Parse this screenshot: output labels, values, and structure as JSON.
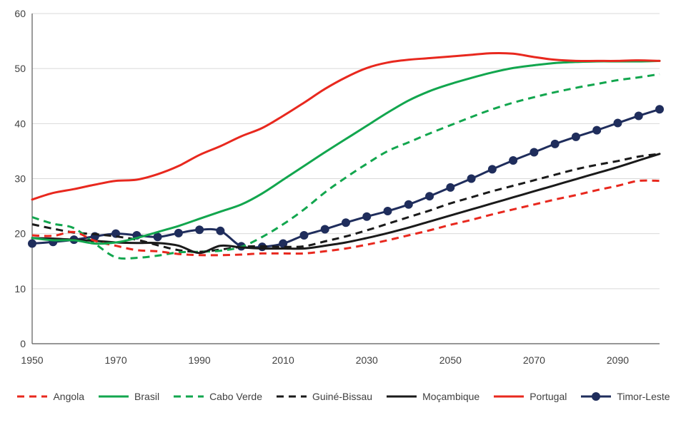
{
  "chart_data": {
    "type": "line",
    "title": "",
    "xlabel": "",
    "ylabel": "",
    "xlim": [
      1950,
      2100
    ],
    "ylim": [
      0,
      60
    ],
    "x_ticks": [
      "1950",
      "1970",
      "1990",
      "2010",
      "2030",
      "2050",
      "2070",
      "2090"
    ],
    "y_ticks": [
      "0",
      "10",
      "20",
      "30",
      "40",
      "50",
      "60"
    ],
    "grid": "horizontal",
    "legend_position": "bottom",
    "x": [
      1950,
      1955,
      1960,
      1965,
      1970,
      1975,
      1980,
      1985,
      1990,
      1995,
      2000,
      2005,
      2010,
      2015,
      2020,
      2025,
      2030,
      2035,
      2040,
      2045,
      2050,
      2055,
      2060,
      2065,
      2070,
      2075,
      2080,
      2085,
      2090,
      2095,
      2100
    ],
    "series": [
      {
        "name": "Angola",
        "color": "#e8281e",
        "style": "dashed",
        "marker": false,
        "values": [
          19.7,
          19.6,
          20.3,
          18.7,
          17.8,
          17.0,
          16.8,
          16.3,
          16.1,
          16.1,
          16.2,
          16.4,
          16.4,
          16.4,
          16.8,
          17.3,
          18.0,
          18.8,
          19.7,
          20.6,
          21.6,
          22.5,
          23.5,
          24.4,
          25.3,
          26.2,
          27.0,
          27.9,
          28.7,
          29.6,
          29.6
        ]
      },
      {
        "name": "Brasil",
        "color": "#12a64e",
        "style": "solid",
        "marker": false,
        "values": [
          19.2,
          18.8,
          18.8,
          18.2,
          18.4,
          19.2,
          20.3,
          21.4,
          22.7,
          24.0,
          25.3,
          27.3,
          29.8,
          32.3,
          34.8,
          37.2,
          39.6,
          42.0,
          44.2,
          45.9,
          47.2,
          48.3,
          49.3,
          50.1,
          50.6,
          51.0,
          51.2,
          51.3,
          51.3,
          51.3,
          51.4
        ]
      },
      {
        "name": "Cabo Verde",
        "color": "#12a64e",
        "style": "dashed",
        "marker": false,
        "values": [
          23.0,
          21.8,
          21.0,
          18.2,
          15.7,
          15.6,
          16.0,
          16.6,
          16.7,
          16.9,
          17.6,
          19.4,
          21.7,
          24.4,
          27.5,
          30.2,
          32.7,
          35.0,
          36.6,
          38.2,
          39.7,
          41.2,
          42.6,
          43.8,
          44.8,
          45.7,
          46.5,
          47.2,
          47.9,
          48.4,
          49.0
        ]
      },
      {
        "name": "Guiné-Bissau",
        "color": "#1a1a1a",
        "style": "dashed",
        "marker": false,
        "values": [
          21.7,
          20.9,
          20.2,
          19.9,
          19.5,
          18.9,
          17.9,
          17.0,
          16.7,
          17.1,
          17.6,
          17.7,
          17.6,
          17.7,
          18.6,
          19.5,
          20.6,
          21.8,
          23.0,
          24.2,
          25.5,
          26.6,
          27.7,
          28.7,
          29.7,
          30.7,
          31.7,
          32.5,
          33.2,
          34.0,
          34.5
        ]
      },
      {
        "name": "Moçambique",
        "color": "#1a1a1a",
        "style": "solid",
        "marker": false,
        "values": [
          19.2,
          19.1,
          18.9,
          18.7,
          18.4,
          18.3,
          18.3,
          17.8,
          16.5,
          17.8,
          17.5,
          17.3,
          17.3,
          17.3,
          17.8,
          18.4,
          19.2,
          20.1,
          21.1,
          22.2,
          23.3,
          24.4,
          25.5,
          26.6,
          27.7,
          28.8,
          29.9,
          31.0,
          32.1,
          33.3,
          34.5
        ]
      },
      {
        "name": "Portugal",
        "color": "#e8281e",
        "style": "solid",
        "marker": false,
        "values": [
          26.2,
          27.4,
          28.1,
          28.9,
          29.6,
          29.8,
          30.8,
          32.3,
          34.3,
          35.9,
          37.7,
          39.2,
          41.4,
          43.8,
          46.3,
          48.4,
          50.1,
          51.1,
          51.6,
          51.9,
          52.2,
          52.5,
          52.8,
          52.7,
          52.1,
          51.6,
          51.4,
          51.4,
          51.4,
          51.5,
          51.4
        ]
      },
      {
        "name": "Timor-Leste",
        "color": "#1f2d5c",
        "style": "solid",
        "marker": true,
        "values": [
          18.2,
          18.5,
          18.9,
          19.5,
          20.0,
          19.7,
          19.4,
          20.1,
          20.7,
          20.5,
          17.7,
          17.6,
          18.2,
          19.7,
          20.8,
          22.0,
          23.1,
          24.1,
          25.3,
          26.8,
          28.4,
          30.0,
          31.7,
          33.3,
          34.8,
          36.3,
          37.6,
          38.8,
          40.1,
          41.4,
          42.6
        ]
      }
    ]
  }
}
